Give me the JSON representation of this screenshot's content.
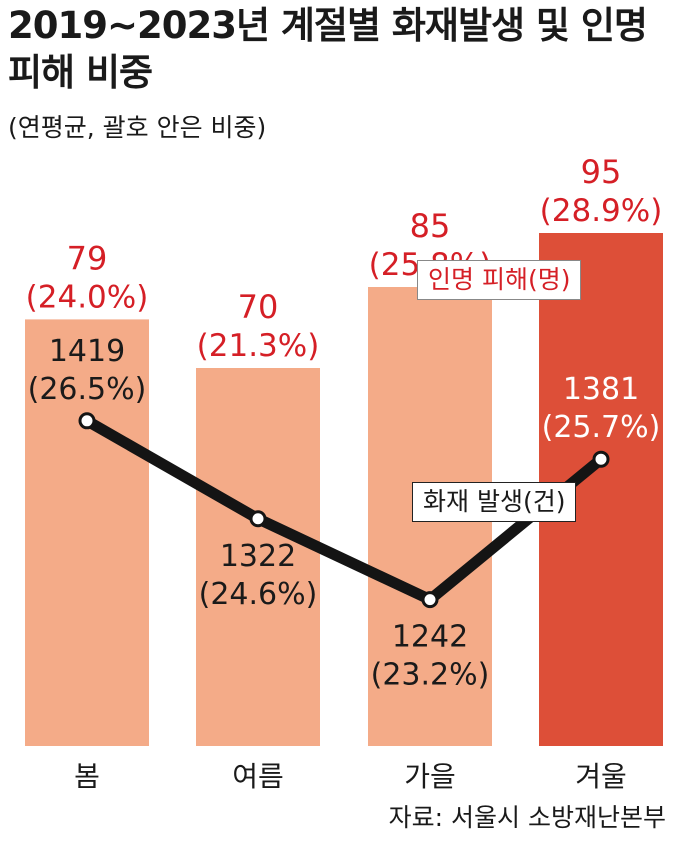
{
  "title": "2019~2023년 계절별 화재발생 및 인명피해 비중",
  "subtitle": "(연평균, 괄호 안은 비중)",
  "source": "자료: 서울시 소방재난본부",
  "legend": {
    "casualty": "인명 피해(명)",
    "fire": "화재 발생(건)"
  },
  "colors": {
    "bar": "#f4ab88",
    "bar_highlight": "#dd4f38",
    "casualty_label": "#d51f26",
    "line": "#141414",
    "text": "#1a1a1a"
  },
  "chart_data": {
    "type": "bar",
    "categories": [
      "봄",
      "여름",
      "가을",
      "겨울"
    ],
    "series": [
      {
        "name": "인명 피해(명)",
        "type": "bar",
        "values": [
          79,
          70,
          85,
          95
        ],
        "labels": [
          "79",
          "70",
          "85",
          "95"
        ],
        "share_labels": [
          "(24.0%)",
          "(21.3%)",
          "(25.8%)",
          "(28.9%)"
        ]
      },
      {
        "name": "화재 발생(건)",
        "type": "line",
        "values": [
          1419,
          1322,
          1242,
          1381
        ],
        "labels": [
          "1419",
          "1322",
          "1242",
          "1381"
        ],
        "share_labels": [
          "(26.5%)",
          "(24.6%)",
          "(23.2%)",
          "(25.7%)"
        ]
      }
    ],
    "highlight_category": "겨울"
  }
}
